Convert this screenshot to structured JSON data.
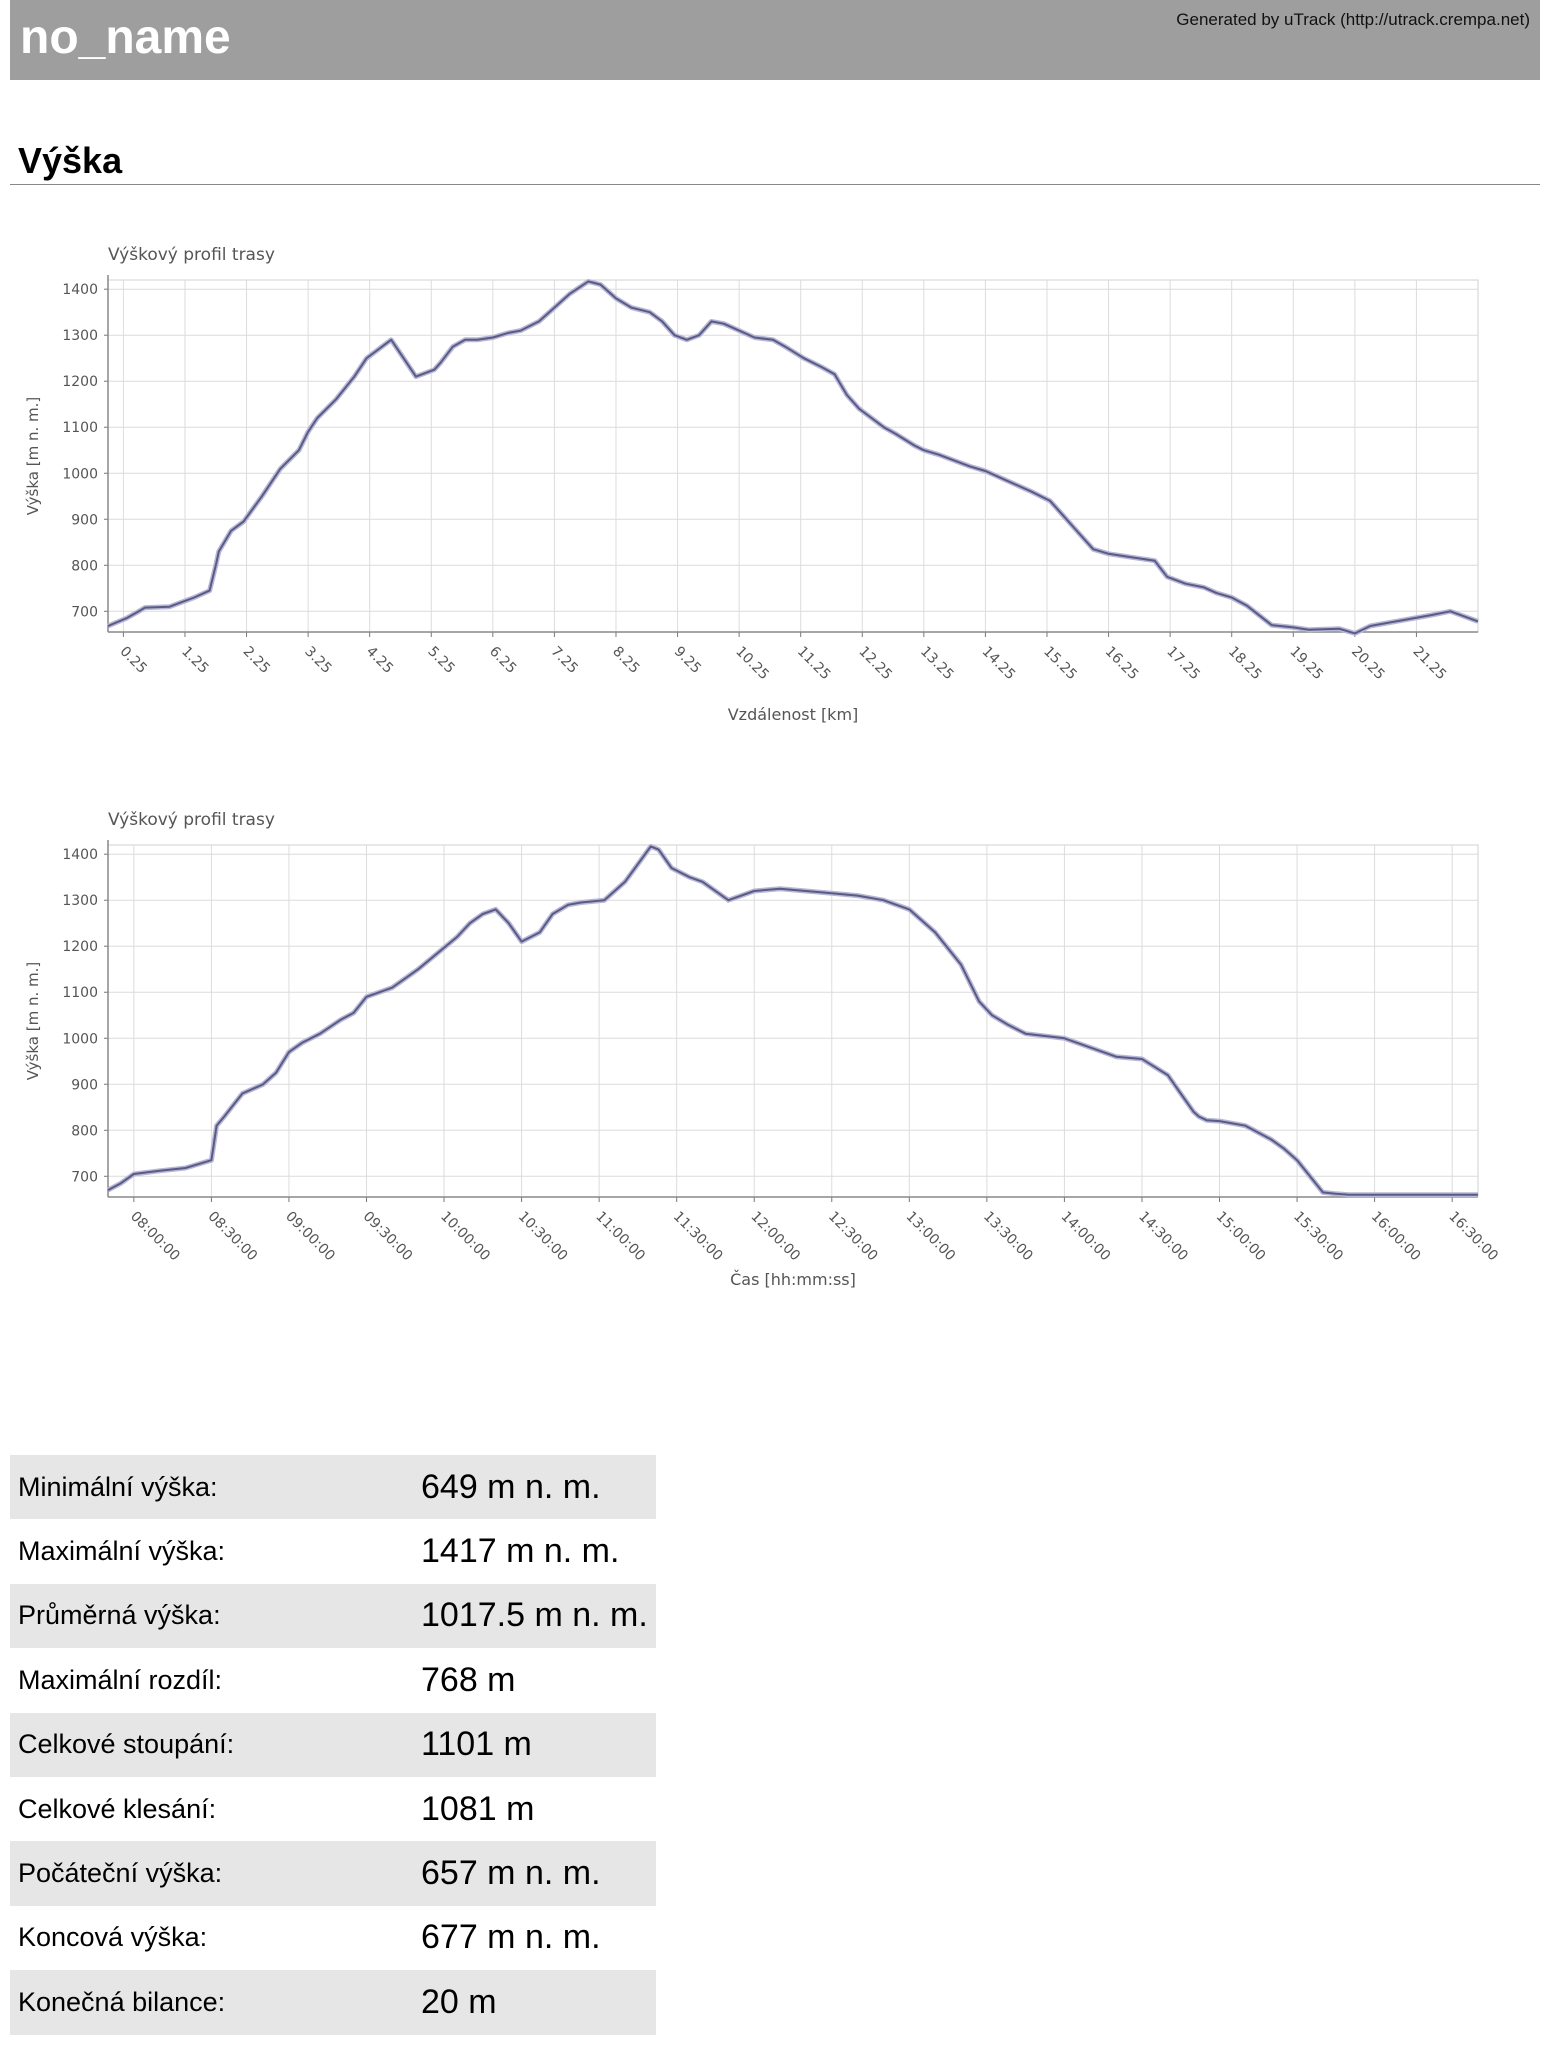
{
  "header": {
    "title": "no_name",
    "generator": "Generated by uTrack (http://utrack.crempa.net)"
  },
  "section": {
    "title": "Výška"
  },
  "colors": {
    "line": "#5a5a86",
    "header_bg": "#9e9e9e",
    "row_alt": "#e6e6e6"
  },
  "chart_data": [
    {
      "type": "line",
      "title": "Výškový profil trasy",
      "xlabel": "Vzdálenost [km]",
      "ylabel": "Výška [m n. m.]",
      "xlim": [
        0,
        22.25
      ],
      "ylim": [
        655,
        1420
      ],
      "yticks": [
        700,
        800,
        900,
        1000,
        1100,
        1200,
        1300,
        1400
      ],
      "xtick_values": [
        0.25,
        1.25,
        2.25,
        3.25,
        4.25,
        5.25,
        6.25,
        7.25,
        8.25,
        9.25,
        10.25,
        11.25,
        12.25,
        13.25,
        14.25,
        15.25,
        16.25,
        17.25,
        18.25,
        19.25,
        20.25,
        21.25
      ],
      "xtick_labels": [
        "0.25",
        "1.25",
        "2.25",
        "3.25",
        "4.25",
        "5.25",
        "6.25",
        "7.25",
        "8.25",
        "9.25",
        "10.25",
        "11.25",
        "12.25",
        "13.25",
        "14.25",
        "15.25",
        "16.25",
        "17.25",
        "18.25",
        "19.25",
        "20.25",
        "21.25"
      ],
      "x": [
        0,
        0.3,
        0.5,
        0.6,
        1.0,
        1.2,
        1.4,
        1.65,
        1.75,
        1.8,
        2.0,
        2.2,
        2.5,
        2.8,
        3.1,
        3.25,
        3.4,
        3.7,
        4.0,
        4.2,
        4.4,
        4.6,
        4.8,
        5.0,
        5.1,
        5.3,
        5.4,
        5.6,
        5.8,
        6.0,
        6.25,
        6.5,
        6.7,
        7.0,
        7.25,
        7.5,
        7.8,
        8.0,
        8.25,
        8.5,
        8.8,
        9.0,
        9.2,
        9.4,
        9.6,
        9.8,
        10.0,
        10.25,
        10.5,
        10.8,
        11.0,
        11.3,
        11.6,
        11.8,
        12.0,
        12.2,
        12.4,
        12.6,
        12.8,
        13.1,
        13.25,
        13.5,
        13.8,
        14.0,
        14.25,
        14.5,
        15.0,
        15.3,
        15.5,
        15.7,
        16.0,
        16.25,
        16.5,
        17.0,
        17.2,
        17.5,
        17.8,
        18.0,
        18.25,
        18.5,
        18.9,
        19.25,
        19.5,
        20.0,
        20.25,
        20.5,
        21.0,
        21.5,
        21.8,
        22.25
      ],
      "values": [
        668,
        685,
        700,
        708,
        710,
        720,
        730,
        745,
        800,
        830,
        875,
        895,
        950,
        1010,
        1050,
        1090,
        1120,
        1160,
        1210,
        1250,
        1270,
        1290,
        1250,
        1210,
        1215,
        1225,
        1240,
        1275,
        1290,
        1290,
        1295,
        1305,
        1310,
        1330,
        1360,
        1390,
        1417,
        1410,
        1380,
        1360,
        1350,
        1330,
        1300,
        1290,
        1300,
        1330,
        1325,
        1310,
        1295,
        1290,
        1275,
        1250,
        1230,
        1215,
        1170,
        1140,
        1120,
        1100,
        1085,
        1060,
        1050,
        1040,
        1025,
        1015,
        1005,
        990,
        960,
        940,
        910,
        880,
        835,
        825,
        820,
        810,
        775,
        760,
        752,
        740,
        730,
        712,
        670,
        665,
        660,
        662,
        652,
        668,
        680,
        692,
        700,
        678
      ]
    },
    {
      "type": "line",
      "title": "Výškový profil trasy",
      "xlabel": "Čas  [hh:mm:ss]",
      "ylabel": "Výška [m n. m.]",
      "xlim": [
        0,
        530
      ],
      "ylim": [
        655,
        1420
      ],
      "yticks": [
        700,
        800,
        900,
        1000,
        1100,
        1200,
        1300,
        1400
      ],
      "x_unit": "minutes since 07:50:00",
      "xtick_values": [
        10,
        40,
        70,
        100,
        130,
        160,
        190,
        220,
        250,
        280,
        310,
        340,
        370,
        400,
        430,
        460,
        490,
        520
      ],
      "xtick_labels": [
        "08:00:00",
        "08:30:00",
        "09:00:00",
        "09:30:00",
        "10:00:00",
        "10:30:00",
        "11:00:00",
        "11:30:00",
        "12:00:00",
        "12:30:00",
        "13:00:00",
        "13:30:00",
        "14:00:00",
        "14:30:00",
        "15:00:00",
        "15:30:00",
        "16:00:00",
        "16:30:00"
      ],
      "x": [
        0,
        5,
        10,
        20,
        30,
        40,
        42,
        45,
        52,
        60,
        65,
        70,
        75,
        82,
        90,
        95,
        100,
        110,
        120,
        135,
        140,
        145,
        150,
        155,
        160,
        167,
        172,
        178,
        183,
        192,
        200,
        210,
        213,
        218,
        225,
        230,
        240,
        250,
        260,
        270,
        280,
        290,
        300,
        310,
        320,
        330,
        337,
        342,
        348,
        355,
        370,
        390,
        400,
        410,
        415,
        420,
        422,
        425,
        430,
        440,
        450,
        455,
        460,
        465,
        470,
        475,
        480,
        490,
        500,
        510,
        515,
        520,
        530
      ],
      "values": [
        670,
        685,
        705,
        712,
        718,
        735,
        810,
        830,
        880,
        900,
        925,
        970,
        990,
        1010,
        1040,
        1055,
        1090,
        1110,
        1150,
        1220,
        1250,
        1270,
        1280,
        1250,
        1210,
        1230,
        1270,
        1290,
        1295,
        1300,
        1340,
        1417,
        1410,
        1370,
        1350,
        1340,
        1300,
        1320,
        1325,
        1320,
        1315,
        1310,
        1300,
        1280,
        1230,
        1160,
        1080,
        1050,
        1030,
        1010,
        1000,
        960,
        955,
        920,
        880,
        840,
        830,
        822,
        820,
        810,
        780,
        760,
        735,
        700,
        665,
        662,
        660,
        660,
        660,
        660,
        660,
        660,
        660
      ]
    }
  ],
  "stats": [
    {
      "label": "Minimální výška:",
      "value": "649 m n. m."
    },
    {
      "label": "Maximální výška:",
      "value": "1417 m n. m."
    },
    {
      "label": "Průměrná výška:",
      "value": "1017.5 m n. m."
    },
    {
      "label": "Maximální rozdíl:",
      "value": "768 m"
    },
    {
      "label": "Celkové stoupání:",
      "value": "1101 m"
    },
    {
      "label": "Celkové klesání:",
      "value": "1081 m"
    },
    {
      "label": "Počáteční výška:",
      "value": "657 m n. m."
    },
    {
      "label": "Koncová výška:",
      "value": "677 m n. m."
    },
    {
      "label": "Konečná bilance:",
      "value": "20 m"
    }
  ]
}
